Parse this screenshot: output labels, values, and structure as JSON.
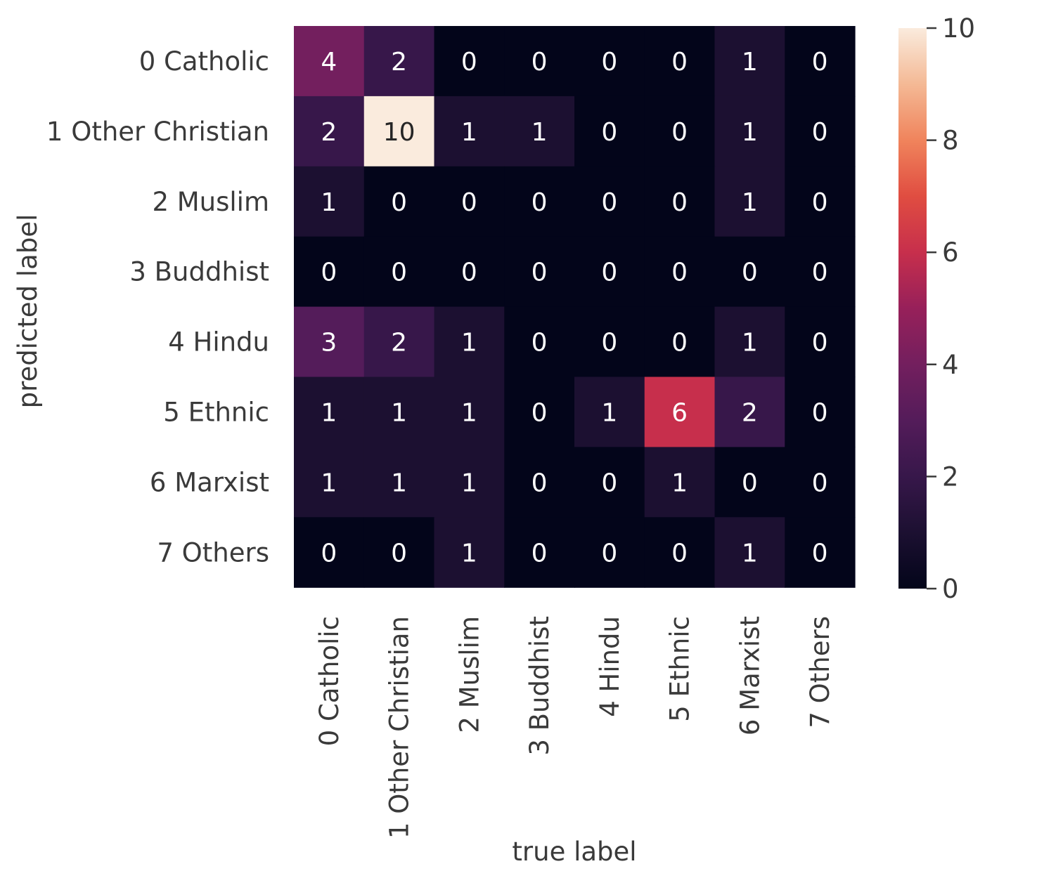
{
  "chart_data": {
    "type": "heatmap",
    "title": "",
    "xlabel": "true label",
    "ylabel": "predicted label",
    "x_categories": [
      "0 Catholic",
      "1 Other Christian",
      "2 Muslim",
      "3 Buddhist",
      "4 Hindu",
      "5 Ethnic",
      "6 Marxist",
      "7 Others"
    ],
    "y_categories": [
      "0 Catholic",
      "1 Other Christian",
      "2 Muslim",
      "3 Buddhist",
      "4 Hindu",
      "5 Ethnic",
      "6 Marxist",
      "7 Others"
    ],
    "values": [
      [
        4,
        2,
        0,
        0,
        0,
        0,
        1,
        0
      ],
      [
        2,
        10,
        1,
        1,
        0,
        0,
        1,
        0
      ],
      [
        1,
        0,
        0,
        0,
        0,
        0,
        1,
        0
      ],
      [
        0,
        0,
        0,
        0,
        0,
        0,
        0,
        0
      ],
      [
        3,
        2,
        1,
        0,
        0,
        0,
        1,
        0
      ],
      [
        1,
        1,
        1,
        0,
        1,
        6,
        2,
        0
      ],
      [
        1,
        1,
        1,
        0,
        0,
        1,
        0,
        0
      ],
      [
        0,
        0,
        1,
        0,
        0,
        0,
        1,
        0
      ]
    ],
    "colorbar": {
      "range": [
        0,
        10
      ],
      "ticks": [
        0,
        2,
        4,
        6,
        8,
        10
      ],
      "colormap": "rocket",
      "colormap_stops": [
        {
          "v": 0,
          "color": "#03051a"
        },
        {
          "v": 0.1,
          "color": "#1c1031"
        },
        {
          "v": 0.2,
          "color": "#37174a"
        },
        {
          "v": 0.3,
          "color": "#541c5a"
        },
        {
          "v": 0.4,
          "color": "#731f5e"
        },
        {
          "v": 0.5,
          "color": "#97205a"
        },
        {
          "v": 0.6,
          "color": "#c72f4c"
        },
        {
          "v": 0.7,
          "color": "#e04d41"
        },
        {
          "v": 0.8,
          "color": "#f0845c"
        },
        {
          "v": 0.9,
          "color": "#f4b995"
        },
        {
          "v": 1.0,
          "color": "#faebdd"
        }
      ]
    },
    "annotation_colors": {
      "dark_text": "#262626",
      "light_text": "#ffffff"
    }
  }
}
